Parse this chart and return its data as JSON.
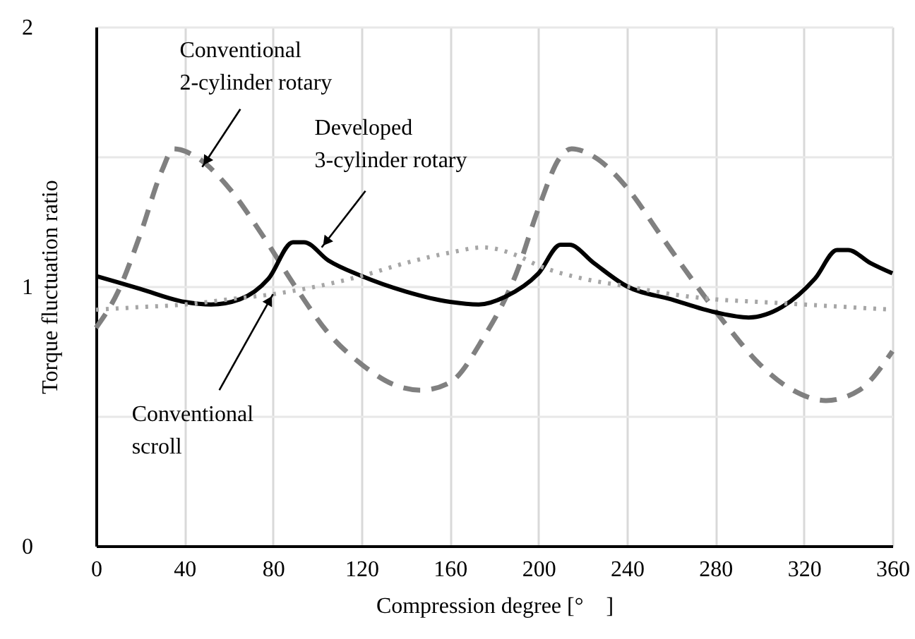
{
  "chart_data": {
    "type": "line",
    "xlabel": "Compression degree [°　]",
    "ylabel": "Torque fluctuation ratio",
    "xlim": [
      0,
      360
    ],
    "xticks": [
      0,
      40,
      80,
      120,
      160,
      200,
      240,
      280,
      320,
      360
    ],
    "ylim": [
      0,
      2
    ],
    "yticks": [
      0,
      {
        "value": 0.5,
        "label": null
      },
      1,
      {
        "value": 1.5,
        "label": null
      },
      2
    ],
    "grid": true,
    "marker": "none",
    "series": [
      {
        "color": "#808080",
        "line_style": "dashed",
        "x": [
          0,
          10,
          20,
          30,
          35,
          45,
          60,
          75,
          90,
          105,
          120,
          135,
          147,
          160,
          175,
          190,
          200,
          210,
          215,
          225,
          240,
          255,
          270,
          285,
          300,
          315,
          330,
          345,
          360
        ],
        "values": [
          0.84,
          0.98,
          1.2,
          1.45,
          1.53,
          1.5,
          1.38,
          1.2,
          1.0,
          0.82,
          0.7,
          0.62,
          0.6,
          0.63,
          0.8,
          1.05,
          1.3,
          1.5,
          1.53,
          1.5,
          1.38,
          1.2,
          1.02,
          0.85,
          0.7,
          0.6,
          0.56,
          0.6,
          0.75
        ]
      },
      {
        "color": "#000000",
        "line_style": "solid",
        "x": [
          0,
          20,
          40,
          52,
          65,
          78,
          89,
          94,
          105,
          120,
          140,
          160,
          173,
          185,
          200,
          210,
          214,
          225,
          240,
          260,
          280,
          295,
          310,
          325,
          335,
          340,
          350,
          360
        ],
        "values": [
          1.04,
          0.99,
          0.94,
          0.93,
          0.95,
          1.03,
          1.17,
          1.17,
          1.1,
          1.04,
          0.98,
          0.94,
          0.93,
          0.96,
          1.05,
          1.16,
          1.16,
          1.09,
          1.0,
          0.95,
          0.9,
          0.88,
          0.92,
          1.03,
          1.14,
          1.14,
          1.09,
          1.05
        ]
      },
      {
        "color": "#a6a6a6",
        "line_style": "dotted",
        "x": [
          0,
          20,
          40,
          60,
          80,
          100,
          120,
          140,
          160,
          175,
          190,
          200,
          220,
          240,
          260,
          280,
          300,
          320,
          340,
          360
        ],
        "values": [
          0.91,
          0.92,
          0.93,
          0.95,
          0.97,
          1.0,
          1.04,
          1.09,
          1.13,
          1.15,
          1.12,
          1.08,
          1.03,
          1.0,
          0.97,
          0.95,
          0.94,
          0.93,
          0.92,
          0.91
        ]
      }
    ],
    "annotations": [
      {
        "text": "Conventional\n2-cylinder rotary",
        "x": 48,
        "y": 1.46
      },
      {
        "text": "Developed\n3-cylinder rotary",
        "x": 102,
        "y": 1.15
      },
      {
        "text": "Conventional\nscroll",
        "x": 80,
        "y": 0.97
      }
    ]
  }
}
